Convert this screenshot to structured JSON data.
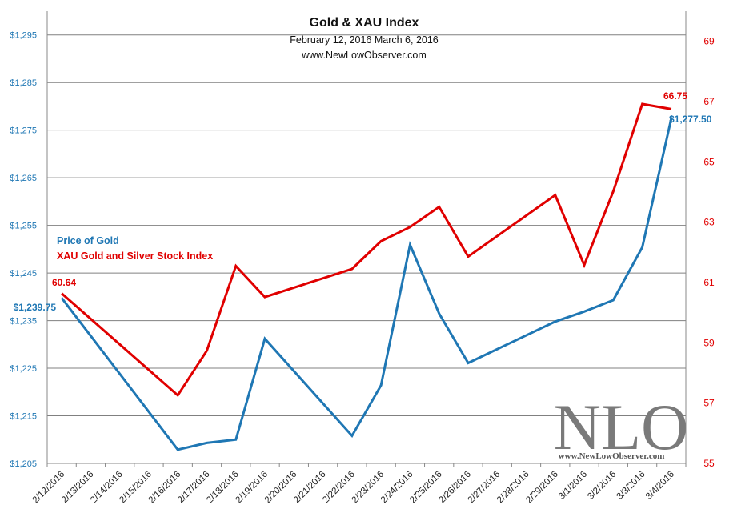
{
  "colors": {
    "gold": "#1f77b4",
    "xau": "#e00000",
    "grid": "#808080",
    "axis": "#888888"
  },
  "chart_data": {
    "type": "line",
    "title": "Gold & XAU Index",
    "subtitle": "February 12, 2016  March 6, 2016",
    "source": "www.NewLowObserver.com",
    "categories": [
      "2/12/2016",
      "2/13/2016",
      "2/14/2016",
      "2/15/2016",
      "2/16/2016",
      "2/17/2016",
      "2/18/2016",
      "2/19/2016",
      "2/20/2016",
      "2/21/2016",
      "2/22/2016",
      "2/23/2016",
      "2/24/2016",
      "2/25/2016",
      "2/26/2016",
      "2/27/2016",
      "2/28/2016",
      "2/29/2016",
      "3/1/2016",
      "3/2/2016",
      "3/3/2016",
      "3/4/2016"
    ],
    "y_left": {
      "min": 1205,
      "max": 1300,
      "ticks": [
        "$1,205",
        "$1,215",
        "$1,225",
        "$1,235",
        "$1,245",
        "$1,255",
        "$1,265",
        "$1,275",
        "$1,285",
        "$1,295"
      ],
      "tick_values": [
        1205,
        1215,
        1225,
        1235,
        1245,
        1255,
        1265,
        1275,
        1285,
        1295
      ]
    },
    "y_right": {
      "min": 55,
      "max": 70,
      "ticks": [
        "55",
        "57",
        "59",
        "61",
        "63",
        "65",
        "67",
        "69"
      ],
      "tick_values": [
        55,
        57,
        59,
        61,
        63,
        65,
        67,
        69
      ]
    },
    "grid": true,
    "legend_placement": "left",
    "series": [
      {
        "name": "Price of Gold",
        "axis": "left",
        "points": [
          {
            "x": 0,
            "y": 1239.75
          },
          {
            "x": 4,
            "y": 1207.9
          },
          {
            "x": 5,
            "y": 1209.3
          },
          {
            "x": 6,
            "y": 1210.0
          },
          {
            "x": 7,
            "y": 1231.2
          },
          {
            "x": 10,
            "y": 1210.8
          },
          {
            "x": 11,
            "y": 1221.4
          },
          {
            "x": 12,
            "y": 1250.9
          },
          {
            "x": 13,
            "y": 1236.5
          },
          {
            "x": 14,
            "y": 1226.1
          },
          {
            "x": 17,
            "y": 1234.8
          },
          {
            "x": 18,
            "y": 1236.9
          },
          {
            "x": 19,
            "y": 1239.3
          },
          {
            "x": 20,
            "y": 1250.4
          },
          {
            "x": 21,
            "y": 1277.5
          }
        ]
      },
      {
        "name": "XAU Gold and Silver Stock Index",
        "axis": "right",
        "points": [
          {
            "x": 0,
            "y": 60.64
          },
          {
            "x": 4,
            "y": 57.26
          },
          {
            "x": 5,
            "y": 58.74
          },
          {
            "x": 6,
            "y": 61.55
          },
          {
            "x": 7,
            "y": 60.52
          },
          {
            "x": 10,
            "y": 61.45
          },
          {
            "x": 11,
            "y": 62.37
          },
          {
            "x": 12,
            "y": 62.84
          },
          {
            "x": 13,
            "y": 63.51
          },
          {
            "x": 14,
            "y": 61.86
          },
          {
            "x": 17,
            "y": 63.9
          },
          {
            "x": 18,
            "y": 61.58
          },
          {
            "x": 19,
            "y": 64.02
          },
          {
            "x": 20,
            "y": 66.92
          },
          {
            "x": 21,
            "y": 66.75
          }
        ]
      }
    ],
    "data_labels": {
      "gold_first": "$1,239.75",
      "gold_last": "$1,277.50",
      "xau_first": "60.64",
      "xau_last": "66.75"
    }
  },
  "logo": {
    "text": "NLO",
    "url": "www.NewLowObserver.com"
  }
}
